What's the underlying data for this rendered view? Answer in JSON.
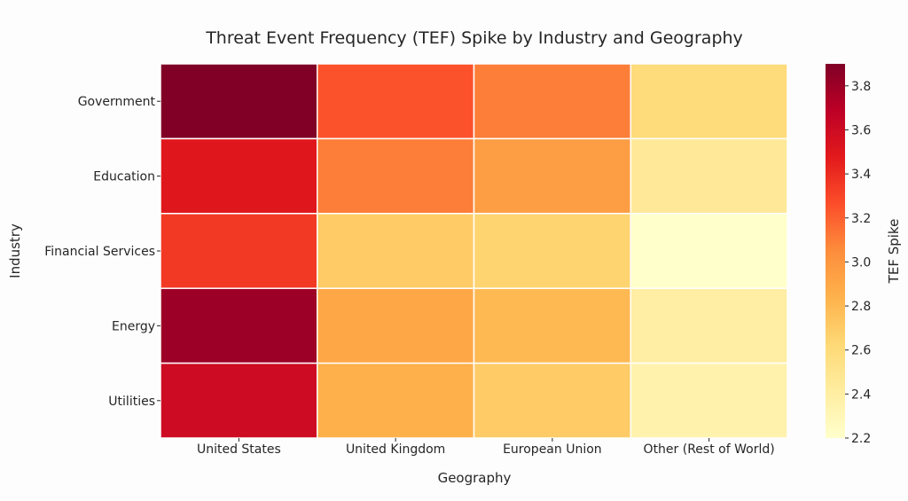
{
  "chart_data": {
    "type": "heatmap",
    "title": "Threat Event Frequency (TEF) Spike by Industry and Geography",
    "xlabel": "Geography",
    "ylabel": "Industry",
    "x_categories": [
      "United States",
      "United Kingdom",
      "European Union",
      "Other (Rest of World)"
    ],
    "y_categories": [
      "Government",
      "Education",
      "Financial Services",
      "Energy",
      "Utilities"
    ],
    "values": [
      [
        3.9,
        3.25,
        3.1,
        2.6
      ],
      [
        3.5,
        3.1,
        2.95,
        2.45
      ],
      [
        3.35,
        2.7,
        2.65,
        2.2
      ],
      [
        3.8,
        2.9,
        2.8,
        2.4
      ],
      [
        3.6,
        2.85,
        2.7,
        2.35
      ]
    ],
    "colorbar": {
      "label": "TEF Spike",
      "range": [
        2.2,
        3.9
      ],
      "ticks": [
        "2.2",
        "2.4",
        "2.6",
        "2.8",
        "3.0",
        "3.2",
        "3.4",
        "3.6",
        "3.8"
      ],
      "colormap": "YlOrRd"
    },
    "colors": {
      "stops": [
        "#ffffcc",
        "#ffeda0",
        "#fed976",
        "#feb24c",
        "#fd8d3c",
        "#fc4e2a",
        "#e31a1c",
        "#bd0026",
        "#800026"
      ],
      "cell_border": "#ffffff",
      "text": "#262626"
    }
  }
}
